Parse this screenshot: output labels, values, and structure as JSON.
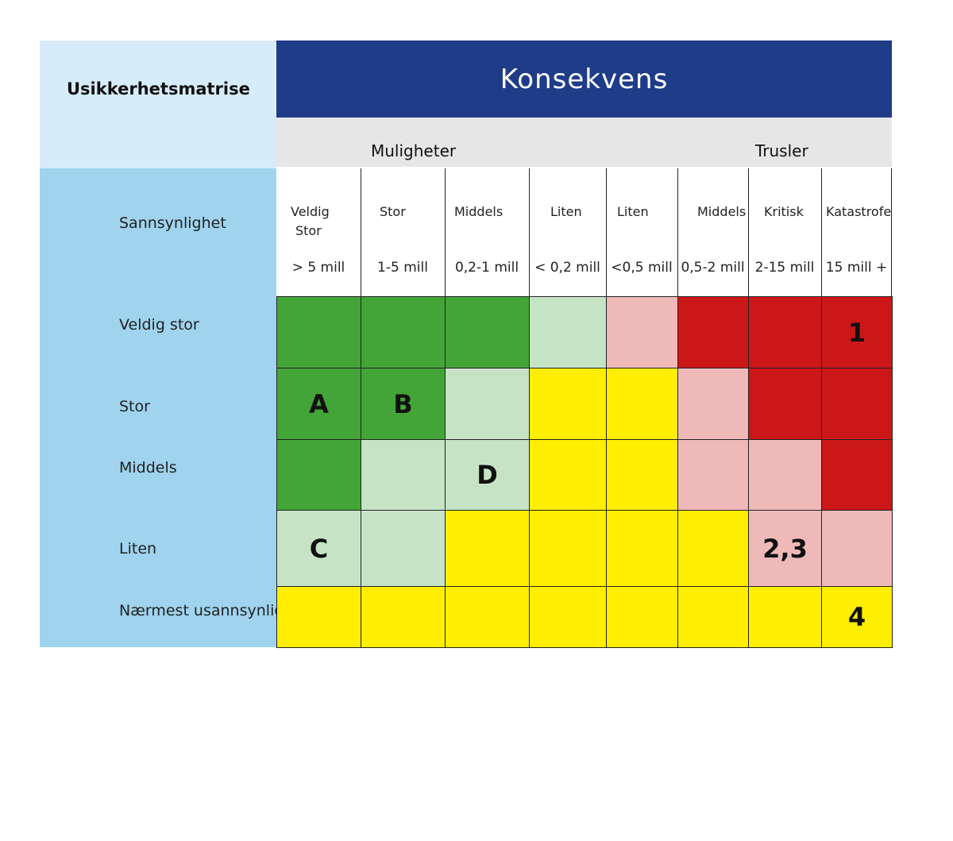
{
  "title": "Usikkerhetsmatrise",
  "konsekvens": "Konsekvens",
  "groups": {
    "muligheter": "Muligheter",
    "trusler": "Trusler"
  },
  "probability_header": "Sannsynlighet",
  "columns": [
    {
      "line1": "Veldig",
      "line2": "Stor",
      "range": "> 5 mill"
    },
    {
      "line1": "Stor",
      "line2": "",
      "range": "1-5 mill"
    },
    {
      "line1": "Middels",
      "line2": "",
      "range": "0,2-1 mill"
    },
    {
      "line1": "Liten",
      "line2": "",
      "range": "< 0,2 mill"
    },
    {
      "line1": "Liten",
      "line2": "",
      "range": "<0,5 mill"
    },
    {
      "line1": "Middels",
      "line2": "",
      "range": "0,5-2 mill"
    },
    {
      "line1": "Kritisk",
      "line2": "",
      "range": "2-15 mill"
    },
    {
      "line1": "Katastrofe",
      "line2": "",
      "range": "15 mill +"
    }
  ],
  "rows": [
    {
      "label": "Veldig stor"
    },
    {
      "label": "Stor"
    },
    {
      "label": "Middels"
    },
    {
      "label": "Liten"
    },
    {
      "label": "Nærmest usannsynlig"
    }
  ],
  "colors": {
    "dark_green": "#43a537",
    "light_green": "#c6e4c5",
    "yellow": "#ffee00",
    "pink": "#f0b9b9",
    "red": "#cc1719"
  },
  "matrix": [
    [
      "dark_green",
      "dark_green",
      "dark_green",
      "light_green",
      "pink",
      "red",
      "red",
      "red"
    ],
    [
      "dark_green",
      "dark_green",
      "light_green",
      "yellow",
      "yellow",
      "pink",
      "red",
      "red"
    ],
    [
      "dark_green",
      "light_green",
      "light_green",
      "yellow",
      "yellow",
      "pink",
      "pink",
      "red"
    ],
    [
      "light_green",
      "light_green",
      "yellow",
      "yellow",
      "yellow",
      "yellow",
      "pink",
      "pink"
    ],
    [
      "yellow",
      "yellow",
      "yellow",
      "yellow",
      "yellow",
      "yellow",
      "yellow",
      "yellow"
    ]
  ],
  "markers": [
    [
      "",
      "",
      "",
      "",
      "",
      "",
      "",
      "1"
    ],
    [
      "A",
      "B",
      "",
      "",
      "",
      "",
      "",
      ""
    ],
    [
      "",
      "",
      "D",
      "",
      "",
      "",
      "",
      ""
    ],
    [
      "C",
      "",
      "",
      "",
      "",
      "",
      "2,3",
      ""
    ],
    [
      "",
      "",
      "",
      "",
      "",
      "",
      "",
      "4"
    ]
  ]
}
